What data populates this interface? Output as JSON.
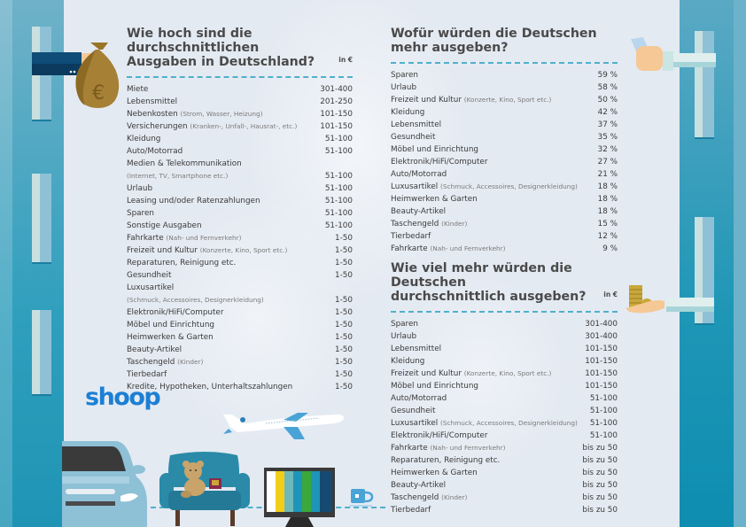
{
  "brand": {
    "logo_text": "shoop",
    "logo_color": "#1c7fd4",
    "accent_color": "#4fb0cc"
  },
  "left_panel": {
    "title_line1": "Wie hoch sind die durchschnittlichen",
    "title_line2": "Ausgaben in Deutschland?",
    "unit": "in €",
    "rows": [
      {
        "label": "Miete",
        "sub": "",
        "value": "301-400"
      },
      {
        "label": "Lebensmittel",
        "sub": "",
        "value": "201-250"
      },
      {
        "label": "Nebenkosten",
        "sub": "(Strom, Wasser, Heizung)",
        "value": "101-150"
      },
      {
        "label": "Versicherungen",
        "sub": "(Kranken-, Unfall-, Hausrat-, etc.)",
        "value": "101-150"
      },
      {
        "label": "Kleidung",
        "sub": "",
        "value": "51-100"
      },
      {
        "label": "Auto/Motorrad",
        "sub": "",
        "value": "51-100"
      },
      {
        "label": "Medien & Telekommunikation",
        "sub": "",
        "value": ""
      },
      {
        "label": "",
        "sub": "(Internet, TV, Smartphone etc.)",
        "value": "51-100"
      },
      {
        "label": "Urlaub",
        "sub": "",
        "value": "51-100"
      },
      {
        "label": "Leasing und/oder Ratenzahlungen",
        "sub": "",
        "value": "51-100"
      },
      {
        "label": "Sparen",
        "sub": "",
        "value": "51-100"
      },
      {
        "label": "Sonstige Ausgaben",
        "sub": "",
        "value": "51-100"
      },
      {
        "label": "Fahrkarte",
        "sub": "(Nah- und Fernverkehr)",
        "value": "1-50"
      },
      {
        "label": "Freizeit und Kultur",
        "sub": "(Konzerte, Kino, Sport etc.)",
        "value": "1-50"
      },
      {
        "label": "Reparaturen, Reinigung etc.",
        "sub": "",
        "value": "1-50"
      },
      {
        "label": "Gesundheit",
        "sub": "",
        "value": "1-50"
      },
      {
        "label": "Luxusartikel",
        "sub": "",
        "value": ""
      },
      {
        "label": "",
        "sub": "(Schmuck, Accessoires, Designerkleidung)",
        "value": "1-50"
      },
      {
        "label": "Elektronik/HiFi/Computer",
        "sub": "",
        "value": "1-50"
      },
      {
        "label": "Möbel und Einrichtung",
        "sub": "",
        "value": "1-50"
      },
      {
        "label": "Heimwerken & Garten",
        "sub": "",
        "value": "1-50"
      },
      {
        "label": "Beauty-Artikel",
        "sub": "",
        "value": "1-50"
      },
      {
        "label": "Taschengeld",
        "sub": "(Kinder)",
        "value": "1-50"
      },
      {
        "label": "Tierbedarf",
        "sub": "",
        "value": "1-50"
      },
      {
        "label": "Kredite, Hypotheken, Unterhaltszahlungen",
        "sub": "",
        "value": "1-50"
      }
    ]
  },
  "right_top_panel": {
    "title_line1": "Wofür würden die Deutschen",
    "title_line2": "mehr ausgeben?",
    "unit": "",
    "rows": [
      {
        "label": "Sparen",
        "sub": "",
        "value": "59 %"
      },
      {
        "label": "Urlaub",
        "sub": "",
        "value": "58 %"
      },
      {
        "label": "Freizeit und Kultur",
        "sub": "(Konzerte, Kino, Sport etc.)",
        "value": "50 %"
      },
      {
        "label": "Kleidung",
        "sub": "",
        "value": "42 %"
      },
      {
        "label": "Lebensmittel",
        "sub": "",
        "value": "37 %"
      },
      {
        "label": "Gesundheit",
        "sub": "",
        "value": "35 %"
      },
      {
        "label": "Möbel und Einrichtung",
        "sub": "",
        "value": "32 %"
      },
      {
        "label": "Elektronik/HiFi/Computer",
        "sub": "",
        "value": "27 %"
      },
      {
        "label": "Auto/Motorrad",
        "sub": "",
        "value": "21 %"
      },
      {
        "label": "Luxusartikel",
        "sub": "(Schmuck, Accessoires, Designerkleidung)",
        "value": "18 %"
      },
      {
        "label": "Heimwerken & Garten",
        "sub": "",
        "value": "18 %"
      },
      {
        "label": "Beauty-Artikel",
        "sub": "",
        "value": "18 %"
      },
      {
        "label": "Taschengeld",
        "sub": "(Kinder)",
        "value": "15 %"
      },
      {
        "label": "Tierbedarf",
        "sub": "",
        "value": "12 %"
      },
      {
        "label": "Fahrkarte",
        "sub": "(Nah- und Fernverkehr)",
        "value": "9 %"
      }
    ]
  },
  "right_bottom_panel": {
    "title_line1": "Wie viel mehr würden die Deutschen",
    "title_line2": "durchschnittlich ausgeben?",
    "unit": "in €",
    "rows": [
      {
        "label": "Sparen",
        "sub": "",
        "value": "301-400"
      },
      {
        "label": "Urlaub",
        "sub": "",
        "value": "301-400"
      },
      {
        "label": "Lebensmittel",
        "sub": "",
        "value": "101-150"
      },
      {
        "label": "Kleidung",
        "sub": "",
        "value": "101-150"
      },
      {
        "label": "Freizeit und Kultur",
        "sub": "(Konzerte, Kino, Sport etc.)",
        "value": "101-150"
      },
      {
        "label": "Möbel und Einrichtung",
        "sub": "",
        "value": "101-150"
      },
      {
        "label": "Auto/Motorrad",
        "sub": "",
        "value": "51-100"
      },
      {
        "label": "Gesundheit",
        "sub": "",
        "value": "51-100"
      },
      {
        "label": "Luxusartikel",
        "sub": "(Schmuck, Accessoires, Designerkleidung)",
        "value": "51-100"
      },
      {
        "label": "Elektronik/HiFi/Computer",
        "sub": "",
        "value": "51-100"
      },
      {
        "label": "Fahrkarte",
        "sub": "(Nah- und Fernverkehr)",
        "value": "bis zu 50"
      },
      {
        "label": "Reparaturen, Reinigung etc.",
        "sub": "",
        "value": "bis zu 50"
      },
      {
        "label": "Heimwerken & Garten",
        "sub": "",
        "value": "bis zu 50"
      },
      {
        "label": "Beauty-Artikel",
        "sub": "",
        "value": "bis zu 50"
      },
      {
        "label": "Taschengeld",
        "sub": "(Kinder)",
        "value": "bis zu 50"
      },
      {
        "label": "Tierbedarf",
        "sub": "",
        "value": "bis zu 50"
      }
    ]
  },
  "illustrations": {
    "money_bag_symbol": "€",
    "icons": [
      "money-bag-hand-icon",
      "banknote-hand-icon",
      "coins-hand-icon",
      "car-icon",
      "armchair-icon",
      "teddy-bear-icon",
      "jewelry-box-icon",
      "television-icon",
      "coffee-cup-icon",
      "airplane-icon"
    ]
  }
}
